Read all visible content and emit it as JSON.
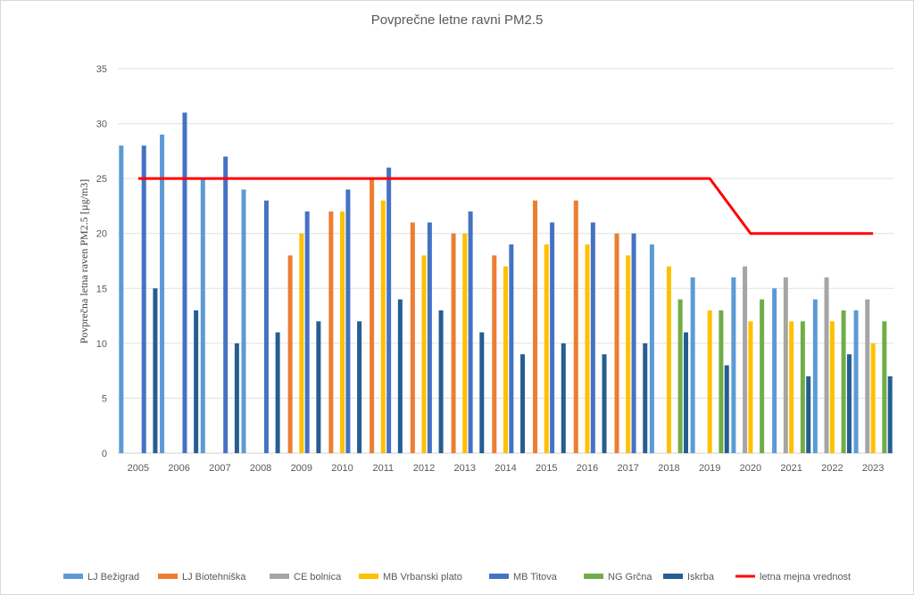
{
  "chart_data": {
    "type": "bar",
    "title": "Povprečne letne ravni PM2.5",
    "xlabel": "",
    "ylabel": "Povprečna letna raven PM2.5 [µg/m3]",
    "ylim": [
      0,
      35
    ],
    "yticks": [
      0,
      5,
      10,
      15,
      20,
      25,
      30,
      35
    ],
    "grid": true,
    "legend_position": "bottom",
    "categories": [
      "2005",
      "2006",
      "2007",
      "2008",
      "2009",
      "2010",
      "2011",
      "2012",
      "2013",
      "2014",
      "2015",
      "2016",
      "2017",
      "2018",
      "2019",
      "2020",
      "2021",
      "2022",
      "2023"
    ],
    "series": [
      {
        "name": "LJ Bežigrad",
        "color": "#5B9BD5",
        "values": [
          28,
          29,
          25,
          24,
          null,
          null,
          null,
          null,
          null,
          null,
          null,
          null,
          null,
          19,
          16,
          16,
          15,
          14,
          13
        ]
      },
      {
        "name": "LJ Biotehniška",
        "color": "#ED7D31",
        "values": [
          null,
          null,
          null,
          null,
          18,
          22,
          25,
          21,
          20,
          18,
          23,
          23,
          20,
          null,
          null,
          null,
          null,
          null,
          null
        ]
      },
      {
        "name": "CE bolnica",
        "color": "#A5A5A5",
        "values": [
          null,
          null,
          null,
          null,
          null,
          null,
          null,
          null,
          null,
          null,
          null,
          null,
          null,
          null,
          null,
          17,
          16,
          16,
          14
        ]
      },
      {
        "name": "MB Vrbanski plato",
        "color": "#FFC000",
        "values": [
          null,
          null,
          null,
          null,
          20,
          22,
          23,
          18,
          20,
          17,
          19,
          19,
          18,
          17,
          13,
          12,
          12,
          12,
          10
        ]
      },
      {
        "name": "MB Titova",
        "color": "#4472C4",
        "values": [
          28,
          31,
          27,
          23,
          22,
          24,
          26,
          21,
          22,
          19,
          21,
          21,
          20,
          null,
          null,
          null,
          null,
          null,
          null
        ]
      },
      {
        "name": "NG Grčna",
        "color": "#70AD47",
        "values": [
          null,
          null,
          null,
          null,
          null,
          null,
          null,
          null,
          null,
          null,
          null,
          null,
          null,
          14,
          13,
          14,
          12,
          13,
          12
        ]
      },
      {
        "name": "Iskrba",
        "color": "#255E91",
        "values": [
          15,
          13,
          10,
          11,
          12,
          12,
          14,
          13,
          11,
          9,
          10,
          9,
          10,
          11,
          8,
          null,
          7,
          9,
          7
        ]
      }
    ],
    "limit_line": {
      "name": "letna mejna vrednost",
      "color": "#FF0000",
      "values": [
        25,
        25,
        25,
        25,
        25,
        25,
        25,
        25,
        25,
        25,
        25,
        25,
        25,
        25,
        25,
        20,
        20,
        20,
        20
      ]
    }
  }
}
